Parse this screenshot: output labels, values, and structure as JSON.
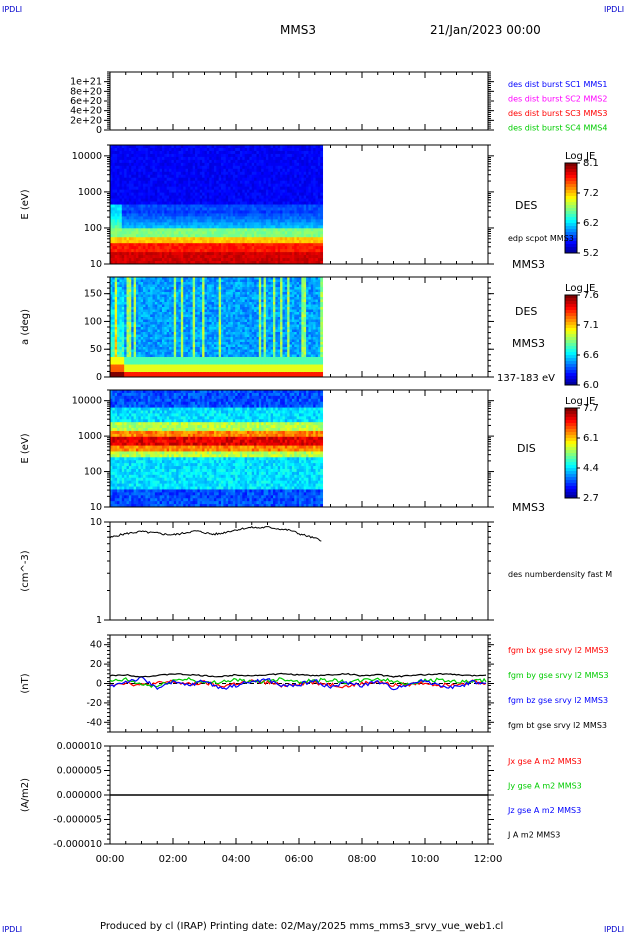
{
  "header": {
    "corner_left": "IPDLI",
    "corner_right": "IPDLI",
    "spacecraft": "MMS3",
    "datetime": "21/Jan/2023 00:00"
  },
  "footer": {
    "text": "Produced by cl (IRAP)   Printing date: 02/May/2025   mms_mms3_srvy_vue_web1.cl",
    "corner_left": "IPDLI",
    "corner_right": "IPDLI"
  },
  "time_axis": {
    "labels": [
      "00:00",
      "02:00",
      "04:00",
      "06:00",
      "08:00",
      "10:00",
      "12:00"
    ],
    "range_hours": [
      0,
      12
    ],
    "data_end_hours": 6.75
  },
  "colors": {
    "red": "#ff0000",
    "green": "#00cc00",
    "blue": "#0000ff",
    "magenta": "#ff00ff",
    "black": "#000000"
  },
  "chart_data": [
    {
      "id": "burst",
      "type": "line",
      "ylabel": "",
      "ylim": [
        0,
        1.2e+21
      ],
      "ytick_labels": [
        "0",
        "2e+20",
        "4e+20",
        "6e+20",
        "8e+20",
        "1e+21"
      ],
      "ytick_values": [
        0,
        2e+20,
        4e+20,
        6e+20,
        8e+20,
        1e+21
      ],
      "x": [
        0,
        12
      ],
      "values": [
        0,
        0
      ],
      "legend": [
        {
          "label": "des dist burst SC1 MMS1",
          "color": "#0000ff"
        },
        {
          "label": "des dist burst SC2 MMS2",
          "color": "#ff00ff"
        },
        {
          "label": "des dist burst SC3 MMS3",
          "color": "#ff0000"
        },
        {
          "label": "des dist burst SC4 MMS4",
          "color": "#00cc00"
        }
      ]
    },
    {
      "id": "des_energy",
      "type": "heatmap",
      "ylabel": "E (eV)",
      "yscale": "log",
      "ylim": [
        10,
        20000
      ],
      "ytick_labels": [
        "10",
        "100",
        "1000",
        "10000"
      ],
      "ytick_values": [
        10,
        100,
        1000,
        10000
      ],
      "right_labels": [
        "DES",
        "edp scpot MMS3",
        "MMS3"
      ],
      "colorbar": {
        "title": "Log JE",
        "ticks": [
          "8.1",
          "7.2",
          "6.2",
          "5.2"
        ]
      },
      "data_end_hours": 6.75
    },
    {
      "id": "des_pitch",
      "type": "heatmap",
      "ylabel": "a (deg)",
      "ylim": [
        0,
        180
      ],
      "ytick_labels": [
        "0",
        "50",
        "100",
        "150"
      ],
      "ytick_values": [
        0,
        50,
        100,
        150
      ],
      "right_labels": [
        "DES",
        "MMS3",
        "137-183 eV"
      ],
      "colorbar": {
        "title": "Log JE",
        "ticks": [
          "7.6",
          "7.1",
          "6.6",
          "6.0"
        ]
      },
      "data_end_hours": 6.75
    },
    {
      "id": "dis_energy",
      "type": "heatmap",
      "ylabel": "E (eV)",
      "yscale": "log",
      "ylim": [
        10,
        20000
      ],
      "ytick_labels": [
        "10",
        "100",
        "1000",
        "10000"
      ],
      "ytick_values": [
        10,
        100,
        1000,
        10000
      ],
      "right_labels": [
        "DIS",
        "MMS3"
      ],
      "colorbar": {
        "title": "Log JE",
        "ticks": [
          "7.7",
          "6.1",
          "4.4",
          "2.7"
        ]
      },
      "data_end_hours": 6.75
    },
    {
      "id": "density",
      "type": "line",
      "ylabel": "(cm^-3)",
      "yscale": "log",
      "ylim": [
        1,
        10
      ],
      "ytick_labels": [
        "1",
        "10"
      ],
      "ytick_values": [
        1,
        10
      ],
      "legend": [
        {
          "label": "des numberdensity fast M",
          "color": "#000000"
        }
      ],
      "series": [
        {
          "x": [
            0.0,
            0.25,
            0.5,
            0.75,
            1.0,
            1.25,
            1.5,
            1.75,
            2.0,
            2.25,
            2.5,
            2.75,
            3.0,
            3.25,
            3.5,
            3.75,
            4.0,
            4.25,
            4.5,
            4.75,
            5.0,
            5.25,
            5.5,
            5.75,
            6.0,
            6.25,
            6.5,
            6.75
          ],
          "values": [
            6.9,
            7.3,
            7.6,
            7.8,
            8.0,
            7.8,
            7.7,
            7.5,
            7.4,
            7.6,
            7.9,
            8.1,
            7.8,
            7.5,
            7.6,
            8.0,
            8.3,
            8.6,
            8.8,
            8.7,
            8.9,
            8.6,
            8.4,
            8.2,
            7.6,
            7.2,
            6.8,
            6.5
          ]
        }
      ]
    },
    {
      "id": "fgm",
      "type": "line",
      "ylabel": "(nT)",
      "ylim": [
        -50,
        50
      ],
      "ytick_labels": [
        "-40",
        "-20",
        "0",
        "20",
        "40"
      ],
      "ytick_values": [
        -40,
        -20,
        0,
        20,
        40
      ],
      "x": [
        0,
        0.5,
        1,
        1.5,
        2,
        2.5,
        3,
        3.5,
        4,
        4.5,
        5,
        5.5,
        6,
        6.5,
        7,
        7.5,
        8,
        8.5,
        9,
        9.5,
        10,
        10.5,
        11,
        11.5,
        12
      ],
      "series": [
        {
          "name": "fgm bx gse srvy l2 MMS3",
          "color": "#ff0000",
          "values": [
            -1,
            1,
            -2,
            0,
            2,
            -1,
            1,
            -3,
            0,
            2,
            1,
            -2,
            0,
            1,
            -1,
            -3,
            0,
            2,
            -2,
            -1,
            1,
            -2,
            0,
            2,
            -1
          ]
        },
        {
          "name": "fgm by gse srvy l2 MMS3",
          "color": "#00cc00",
          "values": [
            2,
            4,
            -1,
            -3,
            3,
            5,
            0,
            2,
            4,
            1,
            3,
            5,
            2,
            3,
            4,
            1,
            3,
            5,
            2,
            0,
            3,
            4,
            1,
            2,
            3
          ]
        },
        {
          "name": "fgm bz gse srvy l2 MMS3",
          "color": "#0000ff",
          "values": [
            -3,
            2,
            5,
            -4,
            1,
            -2,
            3,
            -5,
            -2,
            2,
            4,
            -3,
            -1,
            3,
            -4,
            1,
            -2,
            2,
            -5,
            0,
            3,
            -2,
            -4,
            2,
            -1
          ]
        },
        {
          "name": "fgm bt gse srvy l2 MMS3",
          "color": "#000000",
          "values": [
            8,
            9,
            7,
            8,
            10,
            9,
            8,
            7,
            9,
            8,
            9,
            10,
            9,
            8,
            9,
            10,
            8,
            9,
            7,
            8,
            9,
            10,
            9,
            8,
            9
          ]
        }
      ]
    },
    {
      "id": "current",
      "type": "line",
      "ylabel": "(A/m2)",
      "ylim": [
        -1e-05,
        1e-05
      ],
      "ytick_labels": [
        "-0.000010",
        "-0.000005",
        "0.000000",
        "0.000005",
        "0.000010"
      ],
      "ytick_values": [
        -1e-05,
        -5e-06,
        0,
        5e-06,
        1e-05
      ],
      "x": [
        0,
        12
      ],
      "values": [
        0,
        0
      ],
      "legend": [
        {
          "label": "Jx gse A m2 MMS3",
          "color": "#ff0000"
        },
        {
          "label": "Jy gse A m2 MMS3",
          "color": "#00cc00"
        },
        {
          "label": "Jz gse A m2 MMS3",
          "color": "#0000ff"
        },
        {
          "label": "J A m2 MMS3",
          "color": "#000000"
        }
      ]
    }
  ]
}
